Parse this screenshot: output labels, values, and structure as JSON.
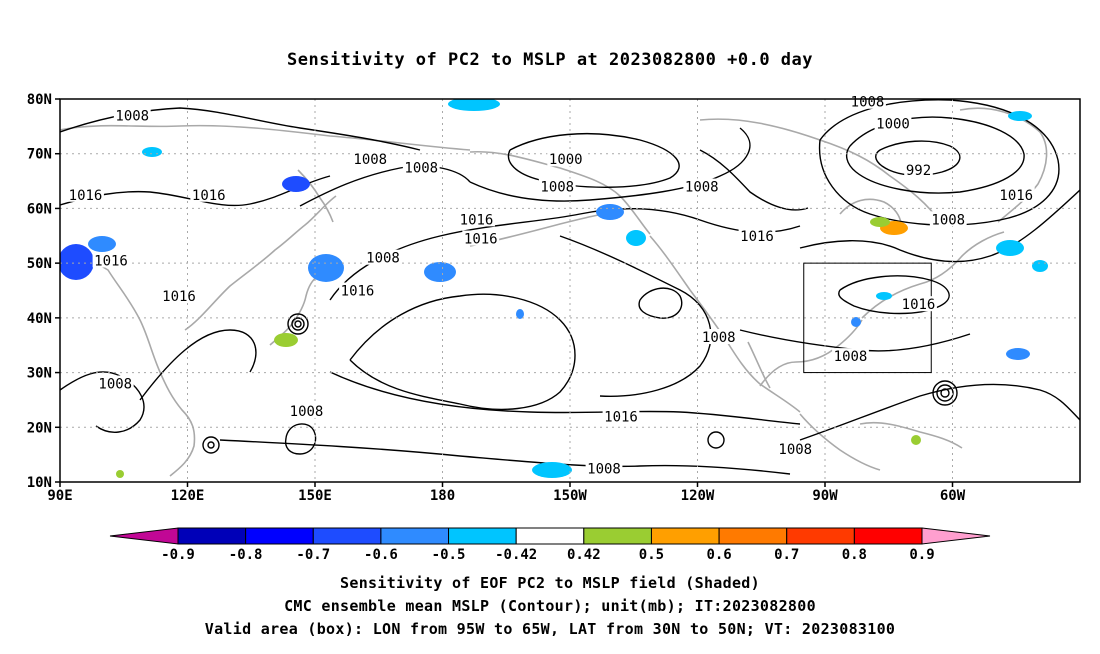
{
  "title": "Sensitivity of PC2 to MSLP at 2023082800 +0.0 day",
  "map": {
    "lat_labels": [
      "80N",
      "70N",
      "60N",
      "50N",
      "40N",
      "30N",
      "20N",
      "10N"
    ],
    "lon_labels": [
      "90E",
      "120E",
      "150E",
      "180",
      "150W",
      "120W",
      "90W",
      "60W"
    ],
    "lon_range": [
      90,
      330
    ],
    "lat_range": [
      10,
      80
    ],
    "valid_box": {
      "lon": [
        265,
        295
      ],
      "lat": [
        30,
        50
      ]
    },
    "contour_color": "#000000",
    "coast_color": "#a9a9a9",
    "contour_labels": [
      {
        "text": "1008",
        "lon": 107,
        "lat": 77
      },
      {
        "text": "1008",
        "lon": 163,
        "lat": 69
      },
      {
        "text": "1008",
        "lon": 175,
        "lat": 67.5
      },
      {
        "text": "1000",
        "lon": 209,
        "lat": 69
      },
      {
        "text": "1008",
        "lon": 207,
        "lat": 64
      },
      {
        "text": "1008",
        "lon": 241,
        "lat": 64
      },
      {
        "text": "1008",
        "lon": 280,
        "lat": 79.5
      },
      {
        "text": "1000",
        "lon": 286,
        "lat": 75.5
      },
      {
        "text": "992",
        "lon": 292,
        "lat": 67
      },
      {
        "text": "1016",
        "lon": 96,
        "lat": 62.5
      },
      {
        "text": "1016",
        "lon": 125,
        "lat": 62.5
      },
      {
        "text": "1016",
        "lon": 315,
        "lat": 62.5
      },
      {
        "text": "1016",
        "lon": 188,
        "lat": 58
      },
      {
        "text": "1016",
        "lon": 189,
        "lat": 54.5
      },
      {
        "text": "1016",
        "lon": 254,
        "lat": 55
      },
      {
        "text": "1008",
        "lon": 299,
        "lat": 58
      },
      {
        "text": "1008",
        "lon": 166,
        "lat": 51
      },
      {
        "text": "1016",
        "lon": 102,
        "lat": 50.5
      },
      {
        "text": "1016",
        "lon": 160,
        "lat": 45
      },
      {
        "text": "1016",
        "lon": 118,
        "lat": 44
      },
      {
        "text": "1016",
        "lon": 292,
        "lat": 42.5
      },
      {
        "text": "1008",
        "lon": 245,
        "lat": 36.5
      },
      {
        "text": "1008",
        "lon": 276,
        "lat": 33
      },
      {
        "text": "1008",
        "lon": 103,
        "lat": 28
      },
      {
        "text": "1008",
        "lon": 148,
        "lat": 23
      },
      {
        "text": "1016",
        "lon": 222,
        "lat": 22
      },
      {
        "text": "1008",
        "lon": 263,
        "lat": 16
      },
      {
        "text": "1008",
        "lon": 218,
        "lat": 12.5
      }
    ]
  },
  "colorbar": {
    "labels": [
      "-0.9",
      "-0.8",
      "-0.7",
      "-0.6",
      "-0.5",
      "-0.42",
      "0.42",
      "0.5",
      "0.6",
      "0.7",
      "0.8",
      "0.9"
    ],
    "colors": [
      "#c10795",
      "#0000b8",
      "#0000ff",
      "#1e4cff",
      "#2f8bff",
      "#00c5ff",
      "#ffffff",
      "#9acd32",
      "#ff9f00",
      "#ff7a00",
      "#ff3a00",
      "#ff0000",
      "#ff9fcf"
    ]
  },
  "footer": {
    "line1": "Sensitivity of EOF PC2 to MSLP field (Shaded)",
    "line2": "CMC ensemble mean MSLP (Contour); unit(mb); IT:2023082800",
    "line3": "Valid area (box): LON from 95W to 65W, LAT from 30N to 50N; VT: 2023083100"
  }
}
